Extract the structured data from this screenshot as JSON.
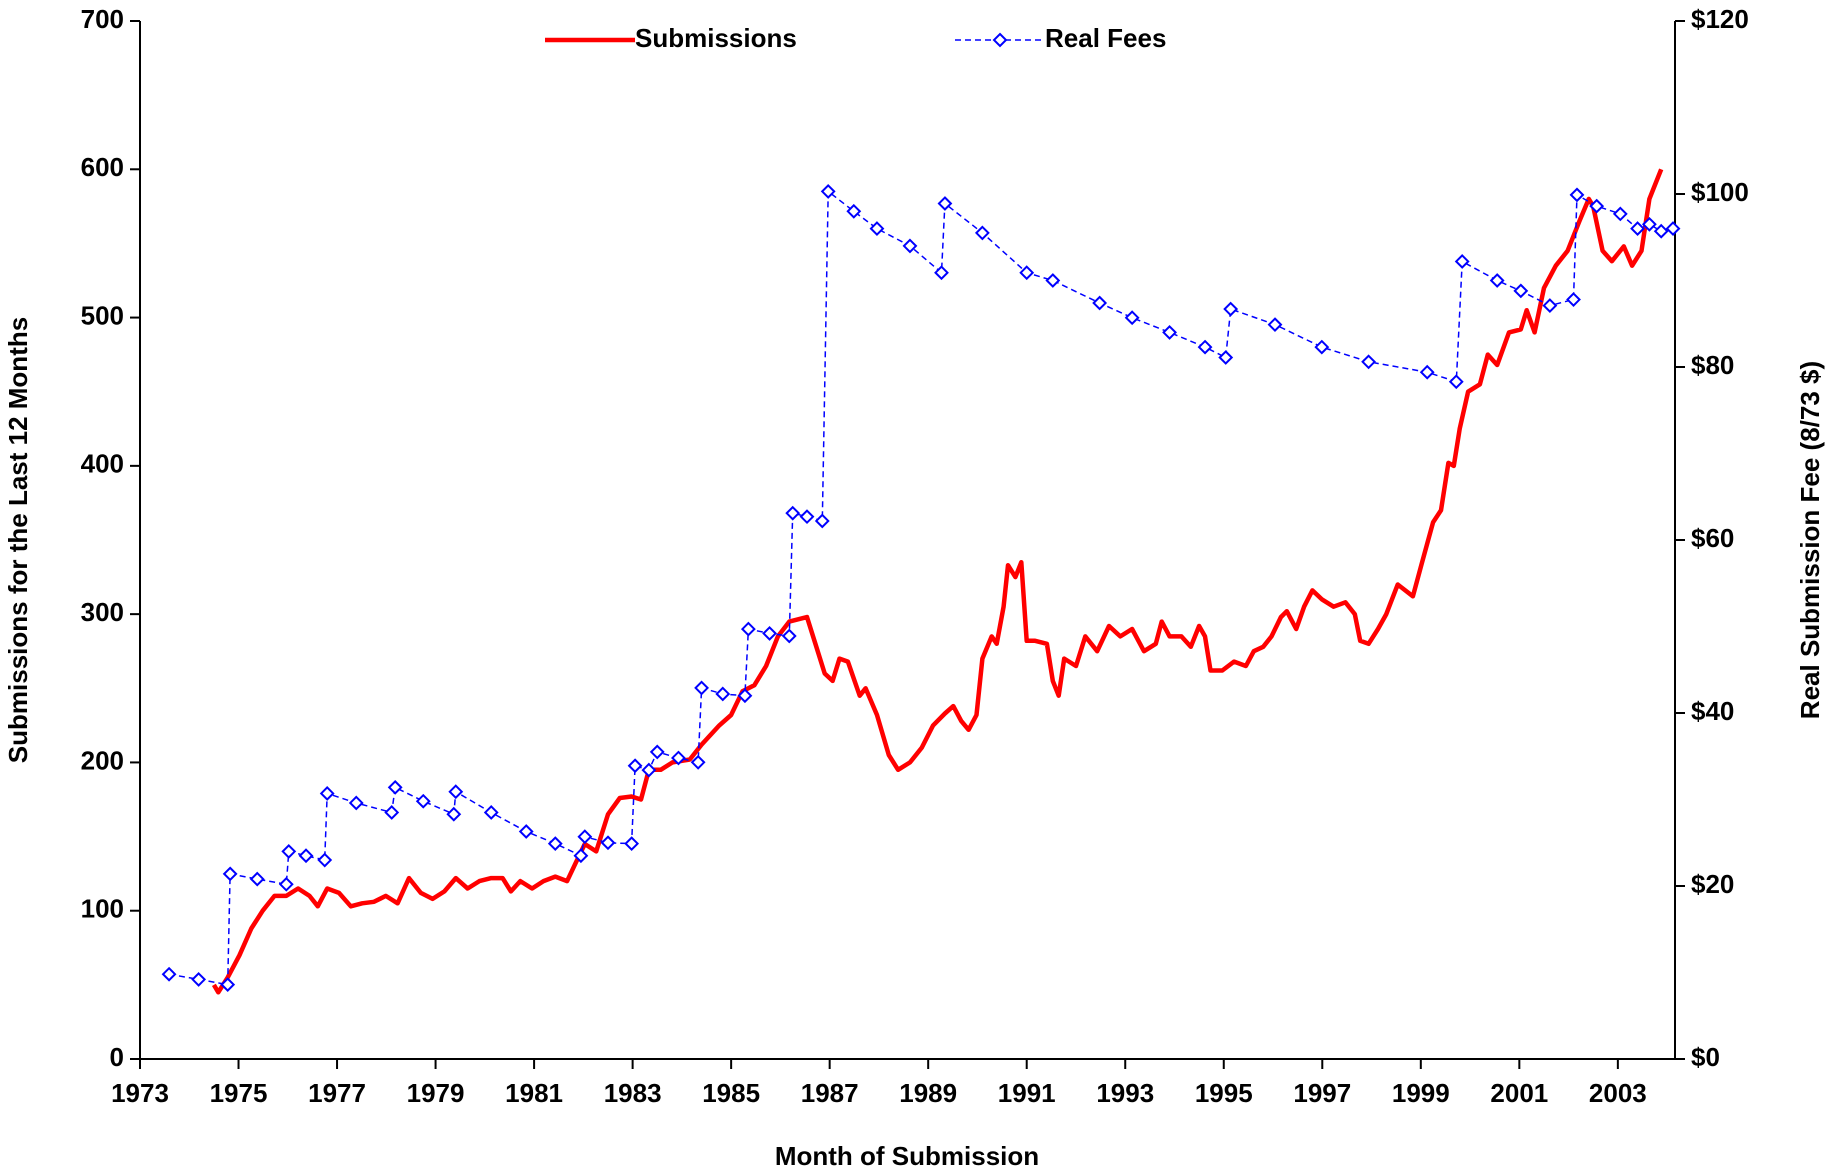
{
  "chart_data": {
    "type": "line",
    "x_label": "Month of Submission",
    "y_label": "Submissions for the Last 12 Months",
    "y2_label": "Real Submission Fee (8/73 $)",
    "xlim": [
      1973,
      2004.16
    ],
    "xticks": [
      1973,
      1975,
      1977,
      1979,
      1981,
      1983,
      1985,
      1987,
      1989,
      1991,
      1993,
      1995,
      1997,
      1999,
      2001,
      2003
    ],
    "ylim": [
      0,
      700
    ],
    "yticks": [
      0,
      100,
      200,
      300,
      400,
      500,
      600,
      700
    ],
    "y2lim": [
      0,
      120
    ],
    "y2ticks": [
      {
        "value": 0,
        "label": "$0"
      },
      {
        "value": 20,
        "label": "$20"
      },
      {
        "value": 40,
        "label": "$40"
      },
      {
        "value": 60,
        "label": "$60"
      },
      {
        "value": 80,
        "label": "$80"
      },
      {
        "value": 100,
        "label": "$100"
      },
      {
        "value": 120,
        "label": "$120"
      }
    ],
    "grid": false,
    "legend": "top",
    "series": [
      {
        "name": "Submissions",
        "color": "#ff0000",
        "x": [
          1974.5,
          1974.59,
          1974.78,
          1975.02,
          1975.26,
          1975.49,
          1975.73,
          1975.97,
          1976.21,
          1976.44,
          1976.61,
          1976.8,
          1977.04,
          1977.28,
          1977.51,
          1977.75,
          1977.99,
          1978.23,
          1978.46,
          1978.7,
          1978.94,
          1979.18,
          1979.41,
          1979.65,
          1979.89,
          1980.13,
          1980.36,
          1980.53,
          1980.72,
          1980.96,
          1981.19,
          1981.43,
          1981.67,
          1981.84,
          1982.03,
          1982.26,
          1982.5,
          1982.74,
          1982.98,
          1983.17,
          1983.33,
          1983.57,
          1983.81,
          1984.16,
          1984.4,
          1984.76,
          1985.0,
          1985.23,
          1985.47,
          1985.71,
          1985.95,
          1986.18,
          1986.54,
          1986.71,
          1986.9,
          1987.06,
          1987.2,
          1987.37,
          1987.61,
          1987.73,
          1987.96,
          1988.2,
          1988.39,
          1988.63,
          1988.87,
          1989.1,
          1989.34,
          1989.51,
          1989.67,
          1989.82,
          1989.98,
          1990.1,
          1990.29,
          1990.39,
          1990.53,
          1990.62,
          1990.77,
          1990.89,
          1991.0,
          1991.17,
          1991.41,
          1991.53,
          1991.65,
          1991.76,
          1992.0,
          1992.19,
          1992.43,
          1992.67,
          1992.9,
          1993.14,
          1993.38,
          1993.62,
          1993.74,
          1993.9,
          1994.14,
          1994.33,
          1994.5,
          1994.62,
          1994.73,
          1994.97,
          1995.21,
          1995.45,
          1995.61,
          1995.8,
          1995.97,
          1996.16,
          1996.28,
          1996.47,
          1996.63,
          1996.8,
          1996.99,
          1997.23,
          1997.47,
          1997.66,
          1997.77,
          1997.94,
          1998.13,
          1998.3,
          1998.53,
          1998.84,
          1999.01,
          1999.25,
          1999.41,
          1999.56,
          1999.67,
          1999.79,
          1999.96,
          2000.2,
          2000.36,
          2000.55,
          2000.79,
          2001.03,
          2001.15,
          2001.31,
          2001.5,
          2001.74,
          2001.98,
          2002.22,
          2002.41,
          2002.5,
          2002.69,
          2002.88,
          2003.12,
          2003.29,
          2003.48,
          2003.64,
          2003.88
        ],
        "values": [
          50,
          45,
          55,
          70,
          88,
          100,
          110,
          110,
          115,
          110,
          103,
          115,
          112,
          103,
          105,
          106,
          110,
          105,
          122,
          112,
          108,
          113,
          122,
          115,
          120,
          122,
          122,
          113,
          120,
          115,
          120,
          123,
          120,
          132,
          145,
          140,
          165,
          176,
          177,
          175,
          195,
          195,
          200,
          202,
          212,
          225,
          232,
          248,
          252,
          265,
          285,
          295,
          298,
          280,
          260,
          255,
          270,
          268,
          245,
          250,
          232,
          205,
          195,
          200,
          210,
          225,
          233,
          238,
          228,
          222,
          232,
          270,
          285,
          280,
          305,
          333,
          325,
          335,
          282,
          282,
          280,
          255,
          245,
          270,
          265,
          285,
          275,
          292,
          285,
          290,
          275,
          280,
          295,
          285,
          285,
          278,
          292,
          285,
          262,
          262,
          268,
          265,
          275,
          278,
          285,
          298,
          302,
          290,
          305,
          316,
          310,
          305,
          308,
          300,
          282,
          280,
          290,
          300,
          320,
          312,
          333,
          362,
          370,
          402,
          400,
          425,
          450,
          455,
          475,
          468,
          490,
          492,
          505,
          490,
          520,
          535,
          545,
          565,
          580,
          575,
          545,
          538,
          548,
          535,
          545,
          580,
          600
        ]
      },
      {
        "name": "Real Fees",
        "color": "#0000ff",
        "axis": "y2",
        "marker": "diamond",
        "dashed": true,
        "x": [
          1973.59,
          1974.19,
          1974.78,
          1974.83,
          1975.38,
          1975.97,
          1976.02,
          1976.37,
          1976.75,
          1976.8,
          1977.39,
          1978.11,
          1978.18,
          1978.75,
          1979.37,
          1979.41,
          1980.13,
          1980.84,
          1981.43,
          1981.95,
          1982.03,
          1982.5,
          1982.98,
          1983.05,
          1983.33,
          1983.5,
          1983.93,
          1984.33,
          1984.4,
          1984.83,
          1985.28,
          1985.35,
          1985.78,
          1986.18,
          1986.25,
          1986.54,
          1986.85,
          1986.97,
          1987.49,
          1987.96,
          1988.63,
          1989.27,
          1989.34,
          1990.1,
          1991.0,
          1991.53,
          1992.48,
          1993.14,
          1993.9,
          1994.62,
          1995.04,
          1995.14,
          1996.04,
          1996.99,
          1997.94,
          1999.13,
          1999.72,
          1999.84,
          2000.55,
          2001.03,
          2001.62,
          2002.1,
          2002.17,
          2002.57,
          2003.05,
          2003.4,
          2003.64,
          2003.88,
          2004.12
        ],
        "values": [
          9.8,
          9.2,
          8.6,
          21.4,
          20.8,
          20.2,
          24.0,
          23.5,
          23.0,
          30.7,
          29.6,
          28.5,
          31.4,
          29.8,
          28.3,
          30.9,
          28.5,
          26.3,
          24.9,
          23.5,
          25.7,
          25.0,
          24.9,
          33.9,
          33.4,
          35.5,
          34.8,
          34.3,
          42.9,
          42.2,
          42.0,
          49.7,
          49.2,
          48.9,
          63.1,
          62.7,
          62.2,
          100.3,
          98.0,
          96.0,
          94.0,
          90.9,
          98.9,
          95.5,
          90.9,
          90.0,
          87.4,
          85.7,
          84.0,
          82.3,
          81.1,
          86.7,
          84.9,
          82.3,
          80.6,
          79.4,
          78.3,
          92.2,
          90.0,
          88.8,
          87.1,
          87.8,
          99.9,
          98.6,
          97.7,
          96.0,
          96.5,
          95.7,
          96.0
        ]
      }
    ]
  }
}
